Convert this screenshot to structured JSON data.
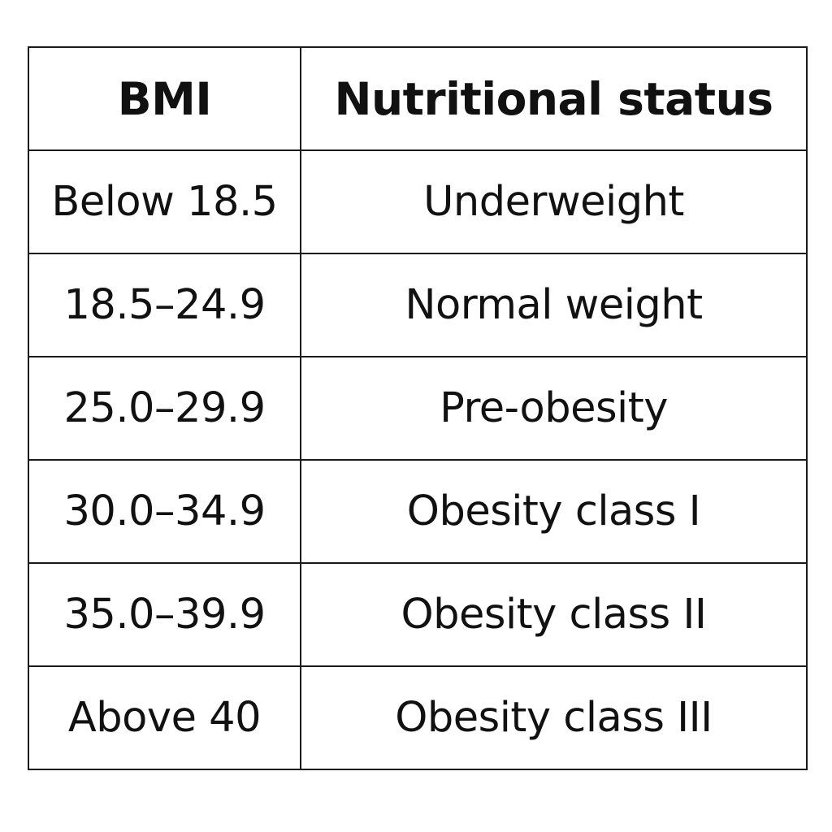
{
  "table": {
    "headers": [
      "BMI",
      "Nutritional status"
    ],
    "rows": [
      [
        "Below 18.5",
        "Underweight"
      ],
      [
        "18.5–24.9",
        "Normal weight"
      ],
      [
        "25.0–29.9",
        "Pre-obesity"
      ],
      [
        "30.0–34.9",
        "Obesity class I"
      ],
      [
        "35.0–39.9",
        "Obesity class II"
      ],
      [
        "Above 40",
        "Obesity class III"
      ]
    ]
  }
}
